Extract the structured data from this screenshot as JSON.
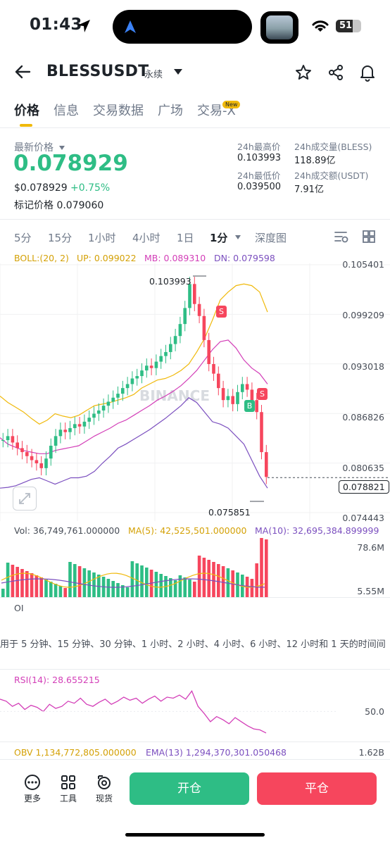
{
  "status_bar": {
    "time": "01:43",
    "battery": "51"
  },
  "header": {
    "symbol": "BLESSUSDT",
    "contract_type": "永续"
  },
  "tabs": [
    {
      "label": "价格",
      "active": true
    },
    {
      "label": "信息",
      "active": false
    },
    {
      "label": "交易数据",
      "active": false
    },
    {
      "label": "广场",
      "active": false
    },
    {
      "label": "交易-X",
      "active": false
    }
  ],
  "new_badge": "New",
  "price": {
    "last_label": "最新价格",
    "last": "0.078929",
    "usd": "$0.078929",
    "change": "+0.75%",
    "mark_label": "标记价格",
    "mark": "0.079060"
  },
  "stats": {
    "high_label": "24h最高价",
    "high": "0.103993",
    "vol_label": "24h成交量(BLESS)",
    "vol": "118.89亿",
    "low_label": "24h最低价",
    "low": "0.039500",
    "amt_label": "24h成交额(USDT)",
    "amt": "7.91亿"
  },
  "timeframes": [
    "5分",
    "15分",
    "1小时",
    "4小时",
    "1日",
    "1分",
    "深度图"
  ],
  "active_timeframe": "1分",
  "boll": {
    "label": "BOLL:(20, 2)",
    "up": "UP: 0.099022",
    "mb": "MB: 0.089310",
    "dn": "DN: 0.079598"
  },
  "price_axis": [
    "0.105401",
    "0.099209",
    "0.093018",
    "0.086826",
    "0.080635",
    "0.074443"
  ],
  "chart_high_label": "0.103993",
  "chart_low_label": "0.075851",
  "current_price_tag": "0.078821",
  "watermark": "BINANCE",
  "signals": {
    "s1": "S",
    "b": "B",
    "s2": "S"
  },
  "volume": {
    "vol": "Vol: 36,749,761.000000",
    "ma5": "MA(5): 42,525,501.000000",
    "ma10": "MA(10): 32,695,384.899999",
    "axis_top": "78.6M",
    "axis_bottom": "5.55M"
  },
  "oi": {
    "label": "OI",
    "notice": "用于 5 分钟、15 分钟、30 分钟、1 小时、2 小时、4 小时、6 小时、12 小时和 1 天的时间间"
  },
  "rsi": {
    "label": "RSI(14): 28.655215",
    "axis": "50.0"
  },
  "obv": {
    "obv": "OBV 1,134,772,805.000000",
    "ema": "EMA(13) 1,294,370,301.050468",
    "axis": "1.62B"
  },
  "bottom_bar": {
    "more": "更多",
    "tools": "工具",
    "spot": "现货",
    "open": "开仓",
    "close": "平仓"
  },
  "colors": {
    "up": "#2ebd85",
    "down": "#f6465d",
    "accent": "#f0b90b",
    "boll_up": "#f0b90b",
    "boll_mb": "#d33fb8",
    "boll_dn": "#7b4fbf"
  },
  "chart_data": {
    "type": "candlestick",
    "timeframe": "1分",
    "price_range": [
      0.074443,
      0.105401
    ],
    "high_marker": 0.103993,
    "low_marker": 0.075851,
    "last_price": 0.078821,
    "close_series": [
      0.0835,
      0.084,
      0.0832,
      0.0825,
      0.082,
      0.0815,
      0.081,
      0.0806,
      0.08,
      0.0812,
      0.0828,
      0.084,
      0.0848,
      0.0845,
      0.085,
      0.0855,
      0.0852,
      0.0858,
      0.0863,
      0.0868,
      0.0872,
      0.0878,
      0.0883,
      0.0888,
      0.0893,
      0.09,
      0.0905,
      0.0912,
      0.0915,
      0.0922,
      0.0928,
      0.0925,
      0.0933,
      0.094,
      0.0945,
      0.0955,
      0.0965,
      0.098,
      0.1,
      0.103,
      0.1005,
      0.099,
      0.096,
      0.093,
      0.0918,
      0.09,
      0.0885,
      0.089,
      0.088,
      0.0895,
      0.0905,
      0.0898,
      0.0885,
      0.087,
      0.082,
      0.0789
    ],
    "boll_up": [
      0.089,
      0.0882,
      0.0876,
      0.087,
      0.0862,
      0.0855,
      0.086,
      0.0868,
      0.0865,
      0.0863,
      0.0866,
      0.0872,
      0.0878,
      0.088,
      0.0882,
      0.0885,
      0.0888,
      0.0892,
      0.09,
      0.0905,
      0.091,
      0.0912,
      0.0916,
      0.0922,
      0.093,
      0.0945,
      0.0962,
      0.0985,
      0.101,
      0.102,
      0.1028,
      0.103,
      0.1028,
      0.102,
      0.0995
    ],
    "boll_mb": [
      0.0838,
      0.083,
      0.0826,
      0.0822,
      0.082,
      0.0818,
      0.0818,
      0.0822,
      0.0824,
      0.0826,
      0.0828,
      0.0834,
      0.084,
      0.0845,
      0.085,
      0.0856,
      0.086,
      0.0866,
      0.0872,
      0.0878,
      0.0885,
      0.089,
      0.0896,
      0.0903,
      0.0912,
      0.0922,
      0.0935,
      0.0948,
      0.0958,
      0.096,
      0.095,
      0.0935,
      0.0925,
      0.0918,
      0.0905
    ],
    "boll_dn": [
      0.0775,
      0.0776,
      0.0778,
      0.0782,
      0.0786,
      0.0788,
      0.0784,
      0.078,
      0.0784,
      0.0788,
      0.0788,
      0.079,
      0.0796,
      0.0806,
      0.0815,
      0.0825,
      0.083,
      0.0836,
      0.0842,
      0.0848,
      0.0855,
      0.0862,
      0.087,
      0.0878,
      0.0888,
      0.0882,
      0.087,
      0.0858,
      0.0855,
      0.085,
      0.084,
      0.083,
      0.081,
      0.079,
      0.0775
    ],
    "rsi_series": [
      62,
      60,
      55,
      58,
      52,
      56,
      54,
      50,
      57,
      53,
      55,
      60,
      58,
      63,
      57,
      55,
      59,
      62,
      57,
      60,
      64,
      61,
      63,
      58,
      62,
      65,
      60,
      64,
      63,
      66,
      62,
      70,
      55,
      48,
      40,
      45,
      42,
      38,
      44,
      40,
      36,
      33,
      32,
      29
    ]
  }
}
